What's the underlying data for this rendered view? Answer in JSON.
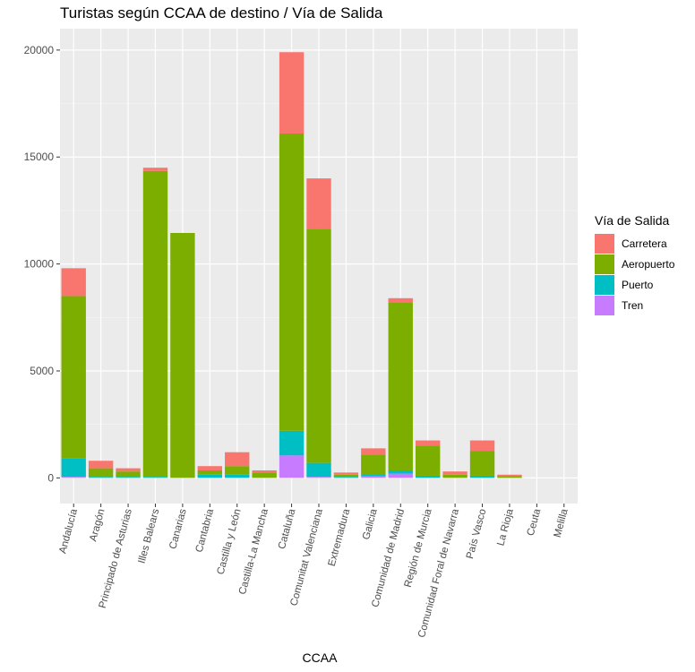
{
  "chart_data": {
    "type": "bar",
    "stacked": true,
    "title": "Turistas según CCAA de destino / Vía de Salida",
    "xlabel": "CCAA",
    "ylabel": "",
    "ylim": [
      -1200,
      21000
    ],
    "yticks": [
      0,
      5000,
      10000,
      15000,
      20000
    ],
    "ytick_labels": [
      "0",
      "5000",
      "10000",
      "15000",
      "20000"
    ],
    "grid": true,
    "legend_position": "right",
    "legend_title": "Vía de Salida",
    "categories": [
      "Andalucía",
      "Aragón",
      "Principado de Asturias",
      "Illes Balears",
      "Canarias",
      "Cantabria",
      "Castilla y León",
      "Castilla-La Mancha",
      "Cataluña",
      "Comunitat Valenciana",
      "Extremadura",
      "Galicia",
      "Comunidad de Madrid",
      "Región de Murcia",
      "Comunidad Foral de Navarra",
      "País Vasco",
      "La Rioja",
      "Ceuta",
      "Melilla"
    ],
    "series": [
      {
        "name": "Tren",
        "color": "#C77CFF",
        "values": [
          50,
          0,
          0,
          0,
          0,
          0,
          0,
          0,
          1050,
          50,
          0,
          80,
          200,
          0,
          0,
          0,
          0,
          0,
          0
        ]
      },
      {
        "name": "Puerto",
        "color": "#00BFC4",
        "values": [
          850,
          50,
          50,
          50,
          0,
          150,
          150,
          0,
          1150,
          650,
          50,
          100,
          150,
          100,
          0,
          100,
          0,
          0,
          0
        ]
      },
      {
        "name": "Aeropuerto",
        "color": "#7CAE00",
        "values": [
          7600,
          400,
          250,
          14300,
          11450,
          200,
          400,
          250,
          13900,
          10950,
          100,
          900,
          7850,
          1400,
          150,
          1150,
          80,
          0,
          0
        ]
      },
      {
        "name": "Carretera",
        "color": "#F8766D",
        "values": [
          1300,
          350,
          150,
          150,
          0,
          200,
          650,
          100,
          3800,
          2350,
          100,
          300,
          200,
          250,
          150,
          500,
          70,
          0,
          0
        ]
      }
    ]
  }
}
